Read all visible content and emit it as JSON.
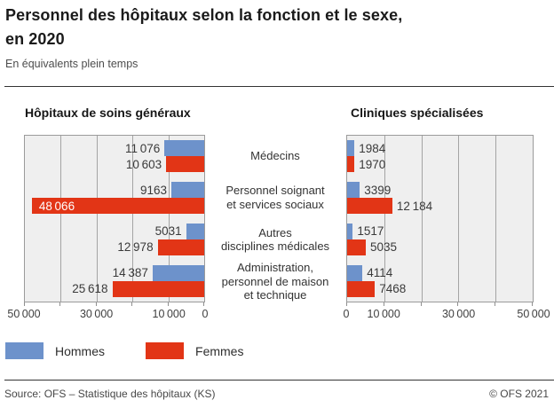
{
  "header": {
    "title": "Personnel des hôpitaux selon la fonction et le sexe,\nen 2020",
    "subtitle": "En équivalents plein temps"
  },
  "chart_data": {
    "type": "bar",
    "orientation": "horizontal-pyramid",
    "xmax": 50000,
    "grid": true,
    "gridlines_pct": [
      20,
      40,
      60,
      80
    ],
    "ticks_pct": [
      0,
      20,
      40,
      60,
      80,
      100
    ],
    "categories": [
      "Médecins",
      "Personnel soignant et services sociaux",
      "Autres disciplines médicales",
      "Administration, personnel de maison et technique"
    ],
    "categories_display": [
      "Médecins",
      "Personnel soignant\net services sociaux",
      "Autres\ndisciplines médicales",
      "Administration,\npersonnel de maison\net technique"
    ],
    "legend": [
      {
        "label": "Hommes",
        "color": "#6d92cb"
      },
      {
        "label": "Femmes",
        "color": "#e23516"
      }
    ],
    "panels": [
      {
        "title": "Hôpitaux de soins généraux",
        "direction": "left",
        "axis_labels": [
          {
            "text": "50 000",
            "pos": 0
          },
          {
            "text": "30 000",
            "pos": 40
          },
          {
            "text": "10 000",
            "pos": 80
          },
          {
            "text": "0",
            "pos": 100
          }
        ],
        "rows": [
          {
            "bars": [
              {
                "series": "Hommes",
                "value": 11076,
                "label": "11 076"
              },
              {
                "series": "Femmes",
                "value": 10603,
                "label": "10 603"
              }
            ]
          },
          {
            "bars": [
              {
                "series": "Hommes",
                "value": 9163,
                "label": "9163"
              },
              {
                "series": "Femmes",
                "value": 48066,
                "label": "48 066"
              }
            ]
          },
          {
            "bars": [
              {
                "series": "Hommes",
                "value": 5031,
                "label": "5031"
              },
              {
                "series": "Femmes",
                "value": 12978,
                "label": "12 978"
              }
            ]
          },
          {
            "bars": [
              {
                "series": "Hommes",
                "value": 14387,
                "label": "14 387"
              },
              {
                "series": "Femmes",
                "value": 25618,
                "label": "25 618"
              }
            ]
          }
        ]
      },
      {
        "title": "Cliniques spécialisées",
        "direction": "right",
        "axis_labels": [
          {
            "text": "0",
            "pos": 0
          },
          {
            "text": "10 000",
            "pos": 20
          },
          {
            "text": "30 000",
            "pos": 60
          },
          {
            "text": "50 000",
            "pos": 100
          }
        ],
        "rows": [
          {
            "bars": [
              {
                "series": "Hommes",
                "value": 1984,
                "label": "1984"
              },
              {
                "series": "Femmes",
                "value": 1970,
                "label": "1970"
              }
            ]
          },
          {
            "bars": [
              {
                "series": "Hommes",
                "value": 3399,
                "label": "3399"
              },
              {
                "series": "Femmes",
                "value": 12184,
                "label": "12 184"
              }
            ]
          },
          {
            "bars": [
              {
                "series": "Hommes",
                "value": 1517,
                "label": "1517"
              },
              {
                "series": "Femmes",
                "value": 5035,
                "label": "5035"
              }
            ]
          },
          {
            "bars": [
              {
                "series": "Hommes",
                "value": 4114,
                "label": "4114"
              },
              {
                "series": "Femmes",
                "value": 7468,
                "label": "7468"
              }
            ]
          }
        ]
      }
    ]
  },
  "footer": {
    "source": "Source: OFS – Statistique des hôpitaux (KS)",
    "copyright": "© OFS 2021"
  }
}
